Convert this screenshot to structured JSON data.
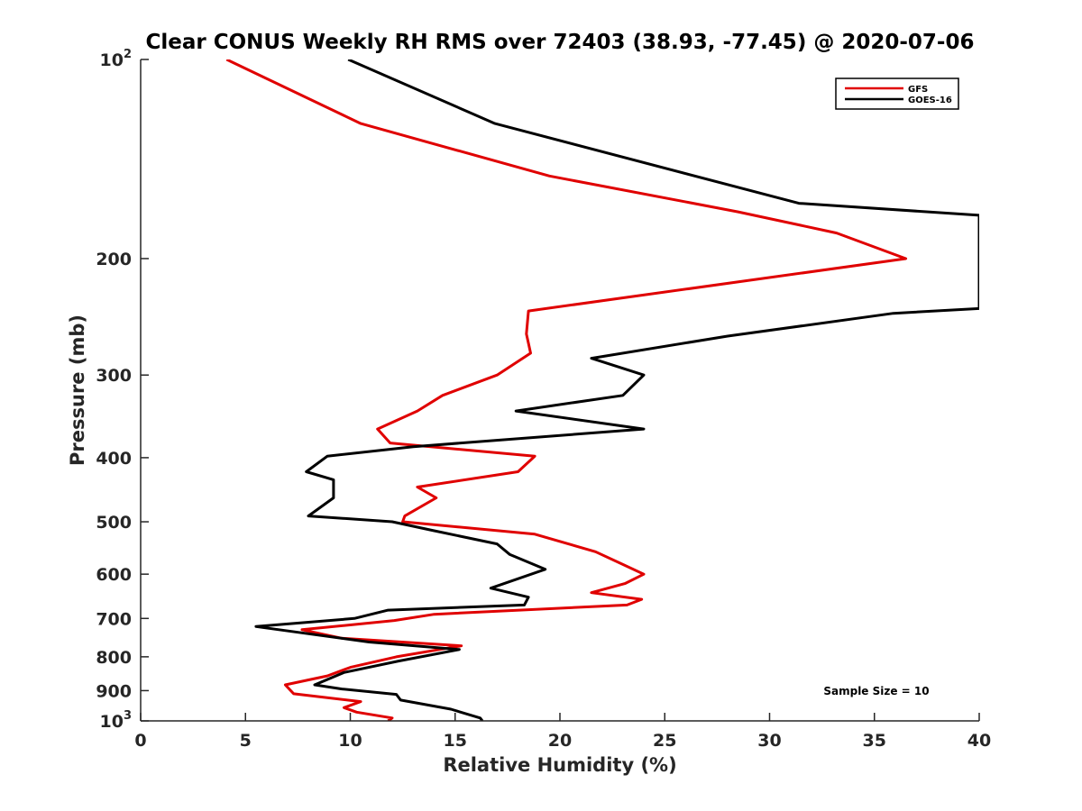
{
  "chart_data": {
    "type": "line",
    "title": "Clear CONUS Weekly RH RMS over 72403 (38.93, -77.45) @ 2020-07-06",
    "xlabel": "Relative Humidity (%)",
    "ylabel": "Pressure (mb)",
    "xlim": [
      0,
      40
    ],
    "ylim": [
      100,
      1000
    ],
    "y_scale": "log",
    "y_reversed": true,
    "x_ticks": [
      0,
      5,
      10,
      15,
      20,
      25,
      30,
      35,
      40
    ],
    "y_ticks": [
      {
        "value": 100,
        "label": "10",
        "sup": "2"
      },
      {
        "value": 200,
        "label": "200"
      },
      {
        "value": 300,
        "label": "300"
      },
      {
        "value": 400,
        "label": "400"
      },
      {
        "value": 500,
        "label": "500"
      },
      {
        "value": 600,
        "label": "600"
      },
      {
        "value": 700,
        "label": "700"
      },
      {
        "value": 800,
        "label": "800"
      },
      {
        "value": 900,
        "label": "900"
      },
      {
        "value": 1000,
        "label": "10",
        "sup": "3"
      }
    ],
    "grid": false,
    "legend_position": "top-right",
    "annotation": "Sample Size = 10",
    "series": [
      {
        "name": "GFS",
        "color": "#e00000",
        "points": [
          [
            4.1,
            100
          ],
          [
            10.5,
            125
          ],
          [
            19.5,
            150
          ],
          [
            28.5,
            170
          ],
          [
            33.2,
            183
          ],
          [
            36.5,
            200
          ],
          [
            18.5,
            240
          ],
          [
            18.4,
            260
          ],
          [
            18.6,
            278
          ],
          [
            17.0,
            300
          ],
          [
            14.4,
            322
          ],
          [
            13.2,
            340
          ],
          [
            11.3,
            362
          ],
          [
            11.9,
            380
          ],
          [
            18.8,
            398
          ],
          [
            18.0,
            420
          ],
          [
            13.2,
            443
          ],
          [
            14.1,
            460
          ],
          [
            12.6,
            490
          ],
          [
            12.5,
            500
          ],
          [
            18.8,
            522
          ],
          [
            21.7,
            555
          ],
          [
            23.0,
            580
          ],
          [
            24.0,
            600
          ],
          [
            23.1,
            620
          ],
          [
            21.5,
            640
          ],
          [
            23.9,
            655
          ],
          [
            23.2,
            668
          ],
          [
            14.0,
            690
          ],
          [
            12.1,
            705
          ],
          [
            7.7,
            728
          ],
          [
            9.6,
            750
          ],
          [
            15.3,
            770
          ],
          [
            12.2,
            800
          ],
          [
            10.0,
            830
          ],
          [
            8.9,
            855
          ],
          [
            6.9,
            882
          ],
          [
            7.3,
            910
          ],
          [
            10.5,
            935
          ],
          [
            9.7,
            955
          ],
          [
            10.3,
            970
          ],
          [
            12.0,
            990
          ],
          [
            11.8,
            1000
          ]
        ]
      },
      {
        "name": "GOES-16",
        "color": "#000000",
        "points": [
          [
            9.9,
            100
          ],
          [
            16.9,
            125
          ],
          [
            31.4,
            165
          ],
          [
            40,
            172
          ],
          [
            40,
            238
          ],
          [
            35.9,
            242
          ],
          [
            28.0,
            262
          ],
          [
            21.5,
            283
          ],
          [
            24.0,
            300
          ],
          [
            23.0,
            322
          ],
          [
            17.9,
            340
          ],
          [
            24.0,
            362
          ],
          [
            13.0,
            385
          ],
          [
            8.9,
            398
          ],
          [
            7.9,
            420
          ],
          [
            9.2,
            432
          ],
          [
            9.2,
            460
          ],
          [
            8.0,
            490
          ],
          [
            12.0,
            500
          ],
          [
            13.9,
            515
          ],
          [
            17.0,
            540
          ],
          [
            17.6,
            560
          ],
          [
            19.3,
            590
          ],
          [
            16.7,
            630
          ],
          [
            18.5,
            650
          ],
          [
            18.3,
            668
          ],
          [
            11.8,
            680
          ],
          [
            10.2,
            700
          ],
          [
            5.5,
            720
          ],
          [
            10.9,
            760
          ],
          [
            15.2,
            780
          ],
          [
            12.3,
            812
          ],
          [
            9.7,
            845
          ],
          [
            8.3,
            882
          ],
          [
            9.6,
            895
          ],
          [
            12.2,
            912
          ],
          [
            12.4,
            930
          ],
          [
            14.8,
            960
          ],
          [
            16.2,
            990
          ],
          [
            16.3,
            1000
          ]
        ]
      }
    ]
  }
}
